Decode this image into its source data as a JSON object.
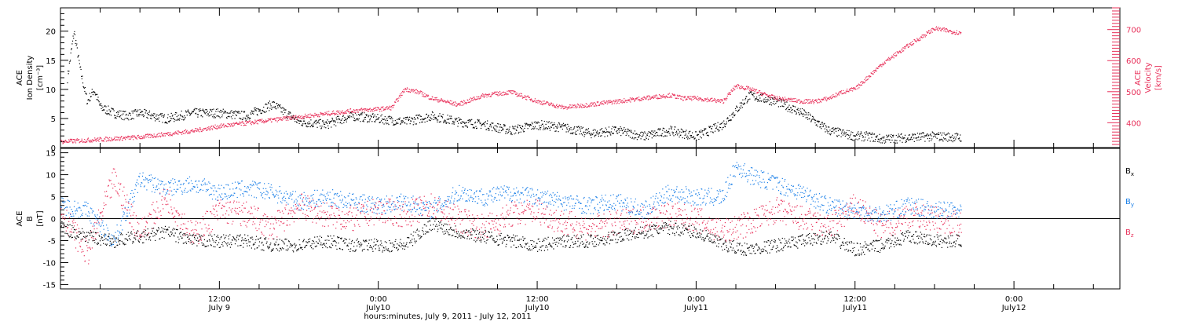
{
  "colors": {
    "density": "#000000",
    "velocity": "#e8305a",
    "bx": "#000000",
    "by": "#1a7fe8",
    "bz": "#e8305a"
  },
  "chart_data": [
    {
      "type": "scatter",
      "panel": "top",
      "left_axis_label": [
        "ACE",
        "Ion Density",
        "[cm⁻³]"
      ],
      "right_axis_label": [
        "ACE",
        "Velocity",
        "[km/s]"
      ],
      "x_range_hours": [
        0,
        68
      ],
      "ylim_left": [
        0,
        24
      ],
      "ylim_right": [
        320,
        770
      ],
      "left_ticks": [
        "0",
        "5",
        "10",
        "15",
        "20"
      ],
      "right_ticks": [
        "400",
        "500",
        "600",
        "700"
      ],
      "series": [
        {
          "axis": "left",
          "x": [
            0.5,
            1.0,
            1.5,
            2.0,
            2.5,
            3,
            4,
            5,
            6,
            8,
            10,
            12,
            14,
            16,
            18,
            20,
            22,
            24,
            26,
            28,
            30,
            32,
            34,
            36,
            38,
            40,
            42,
            44,
            46,
            48,
            50,
            52,
            54,
            56,
            58,
            60,
            61,
            62,
            64,
            66,
            68
          ],
          "values": [
            12,
            20,
            13,
            8,
            10,
            7,
            6,
            5.5,
            6,
            5,
            6,
            6,
            5.5,
            7.5,
            4.5,
            4,
            5.5,
            5,
            4.5,
            5.5,
            4.5,
            4,
            3,
            4,
            3.5,
            2.5,
            3,
            2,
            3,
            2,
            4,
            9,
            8,
            6,
            3,
            2,
            2,
            1.5,
            1.8,
            2,
            1.8
          ]
        },
        {
          "axis": "right",
          "x": [
            0,
            2,
            4,
            6,
            8,
            10,
            12,
            14,
            16,
            18,
            20,
            22,
            24,
            25,
            26,
            27,
            28,
            30,
            32,
            34,
            36,
            38,
            40,
            42,
            44,
            46,
            47,
            48,
            50,
            51,
            52,
            54,
            56,
            57,
            58,
            59,
            60,
            62,
            63,
            64,
            66,
            68
          ],
          "values": [
            340,
            345,
            350,
            355,
            365,
            375,
            390,
            400,
            410,
            420,
            430,
            440,
            445,
            450,
            510,
            500,
            480,
            460,
            490,
            500,
            470,
            450,
            460,
            470,
            480,
            490,
            480,
            480,
            470,
            520,
            510,
            480,
            470,
            470,
            480,
            500,
            510,
            590,
            620,
            650,
            705,
            690
          ]
        }
      ]
    },
    {
      "type": "scatter",
      "panel": "bottom",
      "left_axis_label": [
        "ACE",
        "B",
        "[nT]"
      ],
      "x_range_hours": [
        0,
        68
      ],
      "ylim": [
        -16,
        16
      ],
      "left_ticks": [
        "-15",
        "-10",
        "-5",
        "0",
        "5",
        "10",
        "15"
      ],
      "zero_line": true,
      "legend": [
        {
          "text": "B",
          "sub": "x",
          "series": "bx"
        },
        {
          "text": "B",
          "sub": "y",
          "series": "by"
        },
        {
          "text": "B",
          "sub": "z",
          "series": "bz"
        }
      ],
      "series": [
        {
          "id": "bx",
          "x": [
            0,
            2,
            4,
            6,
            8,
            10,
            12,
            14,
            16,
            18,
            20,
            22,
            24,
            26,
            28,
            30,
            32,
            34,
            36,
            38,
            40,
            42,
            44,
            46,
            48,
            50,
            52,
            54,
            56,
            58,
            60,
            62,
            64,
            66,
            68
          ],
          "values": [
            -2,
            -4,
            -5,
            -4,
            -3,
            -5,
            -5,
            -5,
            -6,
            -6,
            -5,
            -6,
            -6,
            -6,
            -1,
            -3,
            -4,
            -5,
            -6,
            -5,
            -5,
            -4,
            -3,
            -2,
            -3,
            -6,
            -7,
            -6,
            -5,
            -4,
            -7,
            -6,
            -4,
            -5,
            -5
          ]
        },
        {
          "id": "by",
          "x": [
            0,
            2,
            4,
            6,
            8,
            10,
            12,
            14,
            16,
            18,
            20,
            22,
            24,
            26,
            28,
            30,
            32,
            34,
            36,
            38,
            40,
            42,
            44,
            46,
            48,
            50,
            51,
            52,
            54,
            56,
            58,
            60,
            62,
            64,
            66,
            68
          ],
          "values": [
            3,
            2,
            -5,
            9,
            7,
            8,
            6,
            7,
            6,
            4,
            5,
            4,
            3,
            4,
            2,
            6,
            5,
            6,
            5,
            4,
            3,
            4,
            2,
            6,
            5,
            5,
            12,
            10,
            8,
            6,
            3,
            2,
            1,
            3,
            2,
            2
          ]
        },
        {
          "id": "bz",
          "x": [
            0,
            2,
            4,
            6,
            8,
            10,
            12,
            14,
            16,
            18,
            20,
            22,
            24,
            26,
            28,
            30,
            32,
            34,
            36,
            38,
            40,
            42,
            44,
            46,
            48,
            50,
            52,
            54,
            56,
            58,
            60,
            62,
            64,
            66,
            68
          ],
          "values": [
            2,
            -8,
            9,
            -3,
            5,
            -4,
            2,
            1,
            -2,
            3,
            1,
            0,
            2,
            1,
            3,
            0,
            -2,
            1,
            2,
            -1,
            -2,
            -1,
            0,
            1,
            0,
            -3,
            -1,
            2,
            0,
            -2,
            3,
            -2,
            1,
            0,
            -1
          ]
        }
      ]
    }
  ],
  "x_axis": {
    "ticks": [
      {
        "hour": 12,
        "line1": "12:00",
        "line2": "July 9"
      },
      {
        "hour": 24,
        "line1": "0:00",
        "line2": "July10"
      },
      {
        "hour": 36,
        "line1": "12:00",
        "line2": "July10"
      },
      {
        "hour": 48,
        "line1": "0:00",
        "line2": "July11"
      },
      {
        "hour": 60,
        "line1": "12:00",
        "line2": "July11"
      },
      {
        "hour": 72,
        "line1": "0:00",
        "line2": "July12"
      }
    ],
    "title": "hours:minutes, July  9, 2011 - July 12, 2011"
  }
}
